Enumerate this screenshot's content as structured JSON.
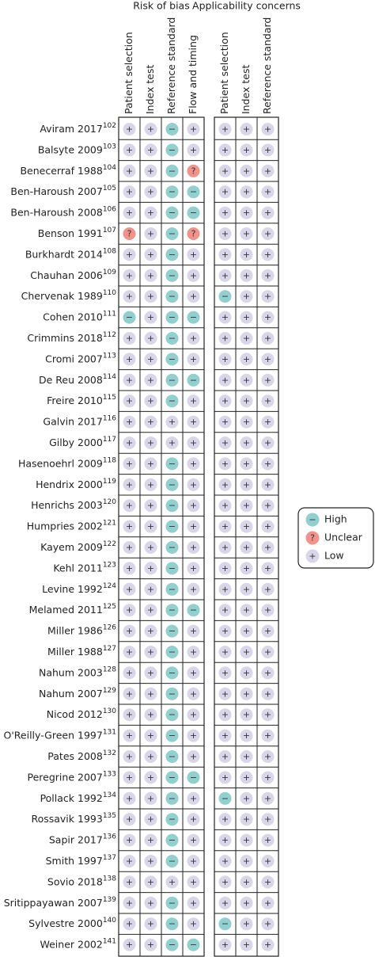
{
  "groups": [
    {
      "title": "Risk of bias",
      "columns": [
        "Patient selection",
        "Index test",
        "Reference standard",
        "Flow and timing"
      ]
    },
    {
      "title": "Applicability concerns",
      "columns": [
        "Patient selection",
        "Index test",
        "Reference standard"
      ]
    }
  ],
  "legend": [
    {
      "symbol": "−",
      "label": "High",
      "color": "#92cfcf"
    },
    {
      "symbol": "?",
      "label": "Unclear",
      "color": "#f1928b"
    },
    {
      "symbol": "+",
      "label": "Low",
      "color": "#d9d6ea"
    }
  ],
  "rows": [
    {
      "study": "Aviram 2017",
      "ref": "102",
      "ratings": [
        [
          "+",
          "+",
          "−",
          "+"
        ],
        [
          "+",
          "+",
          "+"
        ]
      ]
    },
    {
      "study": "Balsyte 2009",
      "ref": "103",
      "ratings": [
        [
          "+",
          "+",
          "−",
          "+"
        ],
        [
          "+",
          "+",
          "+"
        ]
      ]
    },
    {
      "study": "Benecerraf 1988",
      "ref": "104",
      "ratings": [
        [
          "+",
          "+",
          "−",
          "?"
        ],
        [
          "+",
          "+",
          "+"
        ]
      ]
    },
    {
      "study": "Ben-Haroush 2007",
      "ref": "105",
      "ratings": [
        [
          "+",
          "+",
          "−",
          "−"
        ],
        [
          "+",
          "+",
          "+"
        ]
      ]
    },
    {
      "study": "Ben-Haroush 2008",
      "ref": "106",
      "ratings": [
        [
          "+",
          "+",
          "−",
          "−"
        ],
        [
          "+",
          "+",
          "+"
        ]
      ]
    },
    {
      "study": "Benson 1991",
      "ref": "107",
      "ratings": [
        [
          "?",
          "+",
          "−",
          "?"
        ],
        [
          "+",
          "+",
          "+"
        ]
      ]
    },
    {
      "study": "Burkhardt 2014",
      "ref": "108",
      "ratings": [
        [
          "+",
          "+",
          "−",
          "+"
        ],
        [
          "+",
          "+",
          "+"
        ]
      ]
    },
    {
      "study": "Chauhan 2006",
      "ref": "109",
      "ratings": [
        [
          "+",
          "+",
          "−",
          "+"
        ],
        [
          "+",
          "+",
          "+"
        ]
      ]
    },
    {
      "study": "Chervenak 1989",
      "ref": "110",
      "ratings": [
        [
          "+",
          "+",
          "−",
          "+"
        ],
        [
          "−",
          "+",
          "+"
        ]
      ]
    },
    {
      "study": "Cohen 2010",
      "ref": "111",
      "ratings": [
        [
          "−",
          "+",
          "−",
          "−"
        ],
        [
          "+",
          "+",
          "+"
        ]
      ]
    },
    {
      "study": "Crimmins 2018",
      "ref": "112",
      "ratings": [
        [
          "+",
          "+",
          "−",
          "+"
        ],
        [
          "+",
          "+",
          "+"
        ]
      ]
    },
    {
      "study": "Cromi 2007",
      "ref": "113",
      "ratings": [
        [
          "+",
          "+",
          "−",
          "+"
        ],
        [
          "+",
          "+",
          "+"
        ]
      ]
    },
    {
      "study": "De Reu 2008",
      "ref": "114",
      "ratings": [
        [
          "+",
          "+",
          "−",
          "−"
        ],
        [
          "+",
          "+",
          "+"
        ]
      ]
    },
    {
      "study": "Freire 2010",
      "ref": "115",
      "ratings": [
        [
          "+",
          "+",
          "−",
          "+"
        ],
        [
          "+",
          "+",
          "+"
        ]
      ]
    },
    {
      "study": "Galvin 2017",
      "ref": "116",
      "ratings": [
        [
          "+",
          "+",
          "+",
          "+"
        ],
        [
          "+",
          "+",
          "+"
        ]
      ]
    },
    {
      "study": "Gilby 2000",
      "ref": "117",
      "ratings": [
        [
          "+",
          "+",
          "+",
          "+"
        ],
        [
          "+",
          "+",
          "+"
        ]
      ]
    },
    {
      "study": "Hasenoehrl 2009",
      "ref": "118",
      "ratings": [
        [
          "+",
          "+",
          "−",
          "+"
        ],
        [
          "+",
          "+",
          "+"
        ]
      ]
    },
    {
      "study": "Hendrix 2000",
      "ref": "119",
      "ratings": [
        [
          "+",
          "+",
          "−",
          "+"
        ],
        [
          "+",
          "+",
          "+"
        ]
      ]
    },
    {
      "study": "Henrichs 2003",
      "ref": "120",
      "ratings": [
        [
          "+",
          "+",
          "−",
          "+"
        ],
        [
          "+",
          "+",
          "+"
        ]
      ]
    },
    {
      "study": "Humpries 2002",
      "ref": "121",
      "ratings": [
        [
          "+",
          "+",
          "−",
          "+"
        ],
        [
          "+",
          "+",
          "+"
        ]
      ]
    },
    {
      "study": "Kayem 2009",
      "ref": "122",
      "ratings": [
        [
          "+",
          "+",
          "−",
          "+"
        ],
        [
          "+",
          "+",
          "+"
        ]
      ]
    },
    {
      "study": "Kehl 2011",
      "ref": "123",
      "ratings": [
        [
          "+",
          "+",
          "−",
          "+"
        ],
        [
          "+",
          "+",
          "+"
        ]
      ]
    },
    {
      "study": "Levine 1992",
      "ref": "124",
      "ratings": [
        [
          "+",
          "+",
          "−",
          "+"
        ],
        [
          "+",
          "+",
          "+"
        ]
      ]
    },
    {
      "study": "Melamed 2011",
      "ref": "125",
      "ratings": [
        [
          "+",
          "+",
          "−",
          "−"
        ],
        [
          "+",
          "+",
          "+"
        ]
      ]
    },
    {
      "study": "Miller 1986",
      "ref": "126",
      "ratings": [
        [
          "+",
          "+",
          "−",
          "+"
        ],
        [
          "+",
          "+",
          "+"
        ]
      ]
    },
    {
      "study": "Miller 1988",
      "ref": "127",
      "ratings": [
        [
          "+",
          "+",
          "−",
          "+"
        ],
        [
          "+",
          "+",
          "+"
        ]
      ]
    },
    {
      "study": "Nahum 2003",
      "ref": "128",
      "ratings": [
        [
          "+",
          "+",
          "−",
          "+"
        ],
        [
          "+",
          "+",
          "+"
        ]
      ]
    },
    {
      "study": "Nahum 2007",
      "ref": "129",
      "ratings": [
        [
          "+",
          "+",
          "−",
          "+"
        ],
        [
          "+",
          "+",
          "+"
        ]
      ]
    },
    {
      "study": "Nicod 2012",
      "ref": "130",
      "ratings": [
        [
          "+",
          "+",
          "−",
          "+"
        ],
        [
          "+",
          "+",
          "+"
        ]
      ]
    },
    {
      "study": "O'Reilly-Green 1997",
      "ref": "131",
      "ratings": [
        [
          "+",
          "+",
          "−",
          "+"
        ],
        [
          "+",
          "+",
          "+"
        ]
      ]
    },
    {
      "study": "Pates 2008",
      "ref": "132",
      "ratings": [
        [
          "+",
          "+",
          "−",
          "+"
        ],
        [
          "+",
          "+",
          "+"
        ]
      ]
    },
    {
      "study": "Peregrine 2007",
      "ref": "133",
      "ratings": [
        [
          "+",
          "+",
          "−",
          "−"
        ],
        [
          "+",
          "+",
          "+"
        ]
      ]
    },
    {
      "study": "Pollack 1992",
      "ref": "134",
      "ratings": [
        [
          "+",
          "+",
          "−",
          "+"
        ],
        [
          "−",
          "+",
          "+"
        ]
      ]
    },
    {
      "study": "Rossavik 1993",
      "ref": "135",
      "ratings": [
        [
          "+",
          "+",
          "−",
          "+"
        ],
        [
          "+",
          "+",
          "+"
        ]
      ]
    },
    {
      "study": "Sapir 2017",
      "ref": "136",
      "ratings": [
        [
          "+",
          "+",
          "−",
          "+"
        ],
        [
          "+",
          "+",
          "+"
        ]
      ]
    },
    {
      "study": "Smith 1997",
      "ref": "137",
      "ratings": [
        [
          "+",
          "+",
          "−",
          "+"
        ],
        [
          "+",
          "+",
          "+"
        ]
      ]
    },
    {
      "study": "Sovio 2018",
      "ref": "138",
      "ratings": [
        [
          "+",
          "+",
          "+",
          "+"
        ],
        [
          "+",
          "+",
          "+"
        ]
      ]
    },
    {
      "study": "Sritippayawan 2007",
      "ref": "139",
      "ratings": [
        [
          "+",
          "+",
          "−",
          "+"
        ],
        [
          "+",
          "+",
          "+"
        ]
      ]
    },
    {
      "study": "Sylvestre 2000",
      "ref": "140",
      "ratings": [
        [
          "+",
          "+",
          "−",
          "+"
        ],
        [
          "−",
          "+",
          "+"
        ]
      ]
    },
    {
      "study": "Weiner 2002",
      "ref": "141",
      "ratings": [
        [
          "+",
          "+",
          "−",
          "−"
        ],
        [
          "+",
          "+",
          "+"
        ]
      ]
    }
  ]
}
